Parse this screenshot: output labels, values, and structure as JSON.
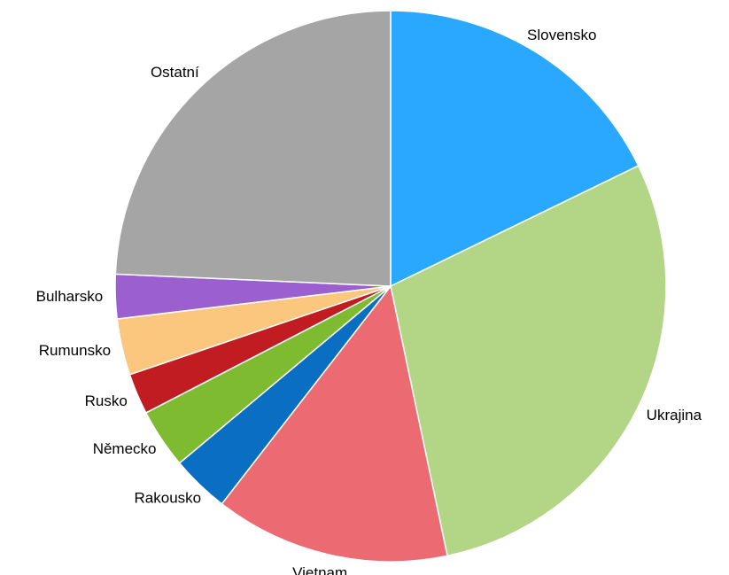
{
  "chart_data": {
    "type": "pie",
    "categories": [
      "Slovensko",
      "Ukrajina",
      "Vietnam",
      "Rakousko",
      "Německo",
      "Rusko",
      "Rumunsko",
      "Bulharsko",
      "Ostatní"
    ],
    "values": [
      17.8,
      28.9,
      13.8,
      3.4,
      3.5,
      2.4,
      3.3,
      2.6,
      24.3
    ],
    "colors": [
      "#2aa8ff",
      "#b2d685",
      "#ec6b72",
      "#0a6fc2",
      "#7fbb31",
      "#c01c22",
      "#fbc77e",
      "#9b5fcf",
      "#a5a5a5"
    ]
  }
}
